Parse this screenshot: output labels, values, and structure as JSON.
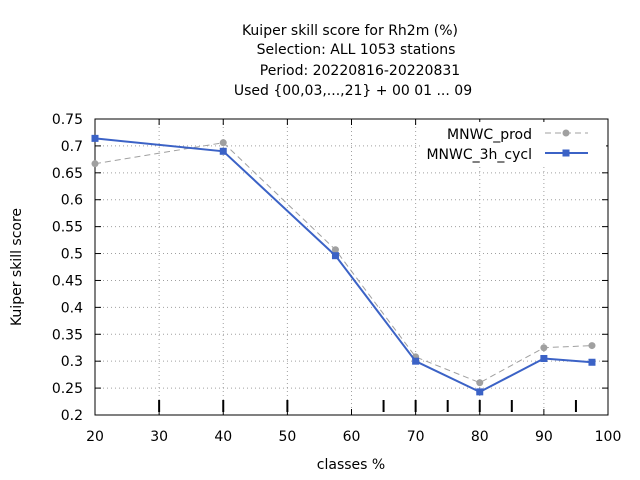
{
  "chart_data": {
    "type": "line",
    "title_lines": [
      "Kuiper skill score  for Rh2m (%)",
      "Selection: ALL   1053 stations",
      "Period: 20220816-20220831",
      "Used {00,03,...,21} + 00 01 ... 09"
    ],
    "xlabel": "classes %",
    "ylabel": "Kuiper skill score",
    "xlim": [
      20,
      100
    ],
    "ylim": [
      0.2,
      0.75
    ],
    "x_ticks": [
      20,
      30,
      40,
      50,
      60,
      70,
      80,
      90,
      100
    ],
    "y_ticks": [
      0.2,
      0.25,
      0.3,
      0.35,
      0.4,
      0.45,
      0.5,
      0.55,
      0.6,
      0.65,
      0.7,
      0.75
    ],
    "x_tick_labels": [
      "20",
      "30",
      "40",
      "50",
      "60",
      "70",
      "80",
      "90",
      "100"
    ],
    "y_tick_labels": [
      "0.2",
      "0.25",
      "0.3",
      "0.35",
      "0.4",
      "0.45",
      "0.5",
      "0.55",
      "0.6",
      "0.65",
      "0.7",
      "0.75"
    ],
    "class_marks_x": [
      30,
      40,
      50,
      65,
      70,
      75,
      80,
      85,
      95
    ],
    "grid": true,
    "legend_position": "top-right",
    "series": [
      {
        "name": "MNWC_prod",
        "color": "#a0a0a0",
        "dashed": true,
        "marker": "circle",
        "x": [
          20,
          40,
          57.5,
          70,
          80,
          90,
          97.5
        ],
        "y": [
          0.667,
          0.706,
          0.507,
          0.308,
          0.26,
          0.325,
          0.329
        ]
      },
      {
        "name": "MNWC_3h_cycl",
        "color": "#3b62c6",
        "dashed": false,
        "marker": "square",
        "x": [
          20,
          40,
          57.5,
          70,
          80,
          90,
          97.5
        ],
        "y": [
          0.714,
          0.69,
          0.496,
          0.3,
          0.243,
          0.305,
          0.298
        ]
      }
    ]
  }
}
